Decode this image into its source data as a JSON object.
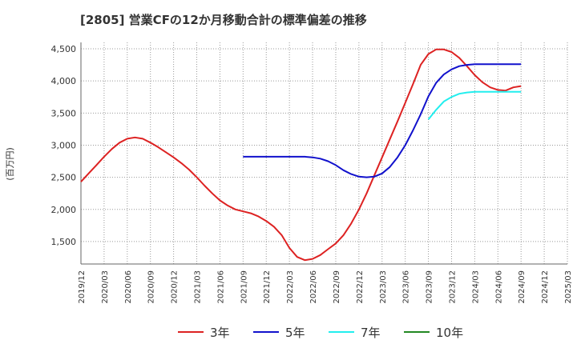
{
  "chart_data": {
    "type": "line",
    "title": "[2805]  営業CFの12か月移動合計の標準偏差の推移",
    "ylabel": "(百万円)",
    "xlabel": "",
    "ylim": [
      1150,
      4600
    ],
    "xlim": [
      "2019/12",
      "2025/03"
    ],
    "y_ticks": [
      1500,
      2000,
      2500,
      3000,
      3500,
      4000,
      4500
    ],
    "y_tick_labels": [
      "1,500",
      "2,000",
      "2,500",
      "3,000",
      "3,500",
      "4,000",
      "4,500"
    ],
    "x_tick_labels": [
      "2019/12",
      "2020/03",
      "2020/06",
      "2020/09",
      "2020/12",
      "2021/03",
      "2021/06",
      "2021/09",
      "2021/12",
      "2022/03",
      "2022/06",
      "2022/09",
      "2022/12",
      "2023/03",
      "2023/06",
      "2023/09",
      "2023/12",
      "2024/03",
      "2024/06",
      "2024/09",
      "2024/12",
      "2025/03"
    ],
    "grid": true,
    "legend_position": "bottom",
    "series": [
      {
        "name": "3年",
        "color": "#dd2222",
        "x": [
          "2019/12",
          "2020/01",
          "2020/02",
          "2020/03",
          "2020/04",
          "2020/05",
          "2020/06",
          "2020/07",
          "2020/08",
          "2020/09",
          "2020/10",
          "2020/11",
          "2020/12",
          "2021/01",
          "2021/02",
          "2021/03",
          "2021/04",
          "2021/05",
          "2021/06",
          "2021/07",
          "2021/08",
          "2021/09",
          "2021/10",
          "2021/11",
          "2021/12",
          "2022/01",
          "2022/02",
          "2022/03",
          "2022/04",
          "2022/05",
          "2022/06",
          "2022/07",
          "2022/08",
          "2022/09",
          "2022/10",
          "2022/11",
          "2022/12",
          "2023/01",
          "2023/02",
          "2023/03",
          "2023/04",
          "2023/05",
          "2023/06",
          "2023/07",
          "2023/08",
          "2023/09",
          "2023/10",
          "2023/11",
          "2023/12",
          "2024/01",
          "2024/02",
          "2024/03",
          "2024/04",
          "2024/05",
          "2024/06",
          "2024/07",
          "2024/08",
          "2024/09"
        ],
        "values": [
          2430,
          2560,
          2690,
          2820,
          2940,
          3040,
          3100,
          3120,
          3100,
          3040,
          2970,
          2890,
          2810,
          2720,
          2620,
          2500,
          2370,
          2250,
          2140,
          2060,
          2000,
          1970,
          1940,
          1890,
          1820,
          1730,
          1600,
          1400,
          1260,
          1210,
          1230,
          1290,
          1380,
          1470,
          1600,
          1780,
          2000,
          2250,
          2530,
          2810,
          3090,
          3370,
          3660,
          3950,
          4250,
          4420,
          4490,
          4490,
          4450,
          4360,
          4230,
          4090,
          3980,
          3900,
          3860,
          3850,
          3900,
          3920
        ],
        "description_hidden": ""
      },
      {
        "name": "5年",
        "color": "#1111cc",
        "x": [
          "2021/09",
          "2021/10",
          "2021/11",
          "2021/12",
          "2022/01",
          "2022/02",
          "2022/03",
          "2022/04",
          "2022/05",
          "2022/06",
          "2022/07",
          "2022/08",
          "2022/09",
          "2022/10",
          "2022/11",
          "2022/12",
          "2023/01",
          "2023/02",
          "2023/03",
          "2023/04",
          "2023/05",
          "2023/06",
          "2023/07",
          "2023/08",
          "2023/09",
          "2023/10",
          "2023/11",
          "2023/12",
          "2024/01",
          "2024/02",
          "2024/03",
          "2024/04",
          "2024/05",
          "2024/06",
          "2024/07",
          "2024/08",
          "2024/09"
        ],
        "values": [
          2820,
          2820,
          2820,
          2820,
          2820,
          2820,
          2820,
          2820,
          2820,
          2810,
          2790,
          2750,
          2690,
          2610,
          2550,
          2510,
          2500,
          2510,
          2560,
          2660,
          2810,
          3000,
          3230,
          3480,
          3760,
          3970,
          4100,
          4180,
          4230,
          4250,
          4260,
          4260,
          4260,
          4260,
          4260,
          4260,
          4260
        ]
      },
      {
        "name": "7年",
        "color": "#22eeee",
        "x": [
          "2023/09",
          "2023/10",
          "2023/11",
          "2023/12",
          "2024/01",
          "2024/02",
          "2024/03",
          "2024/04",
          "2024/05",
          "2024/06",
          "2024/07",
          "2024/08",
          "2024/09"
        ],
        "values": [
          3400,
          3550,
          3680,
          3750,
          3800,
          3820,
          3830,
          3830,
          3830,
          3830,
          3830,
          3830,
          3830
        ]
      },
      {
        "name": "10年",
        "color": "#228822",
        "x": [],
        "values": []
      }
    ]
  }
}
